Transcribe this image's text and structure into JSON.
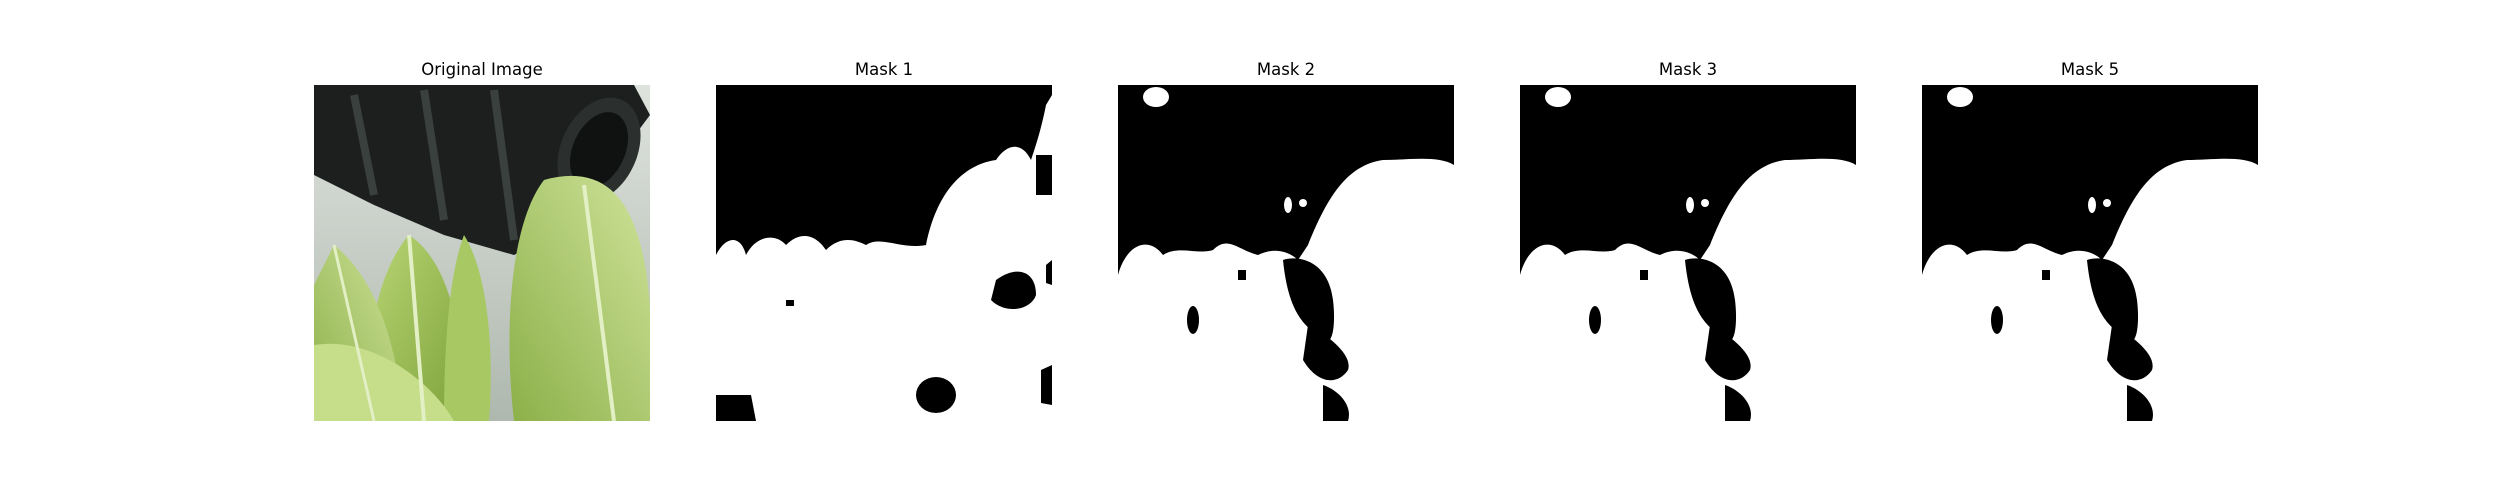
{
  "panels": [
    {
      "title": "Original Image",
      "kind": "photo-leaves-and-dark-tube"
    },
    {
      "title": "Mask 1",
      "kind": "binary-mask"
    },
    {
      "title": "Mask 2",
      "kind": "binary-mask"
    },
    {
      "title": "Mask 3",
      "kind": "binary-mask"
    },
    {
      "title": "Mask 5",
      "kind": "binary-mask"
    }
  ],
  "colors": {
    "background": "#ffffff",
    "mask_foreground": "#ffffff",
    "mask_background": "#000000",
    "leaf_light": "#c6dd8a",
    "leaf_mid": "#9fc25a",
    "leaf_dark": "#6f8f33",
    "tube": "#1c1f1e",
    "backdrop": "#c9cec8"
  }
}
